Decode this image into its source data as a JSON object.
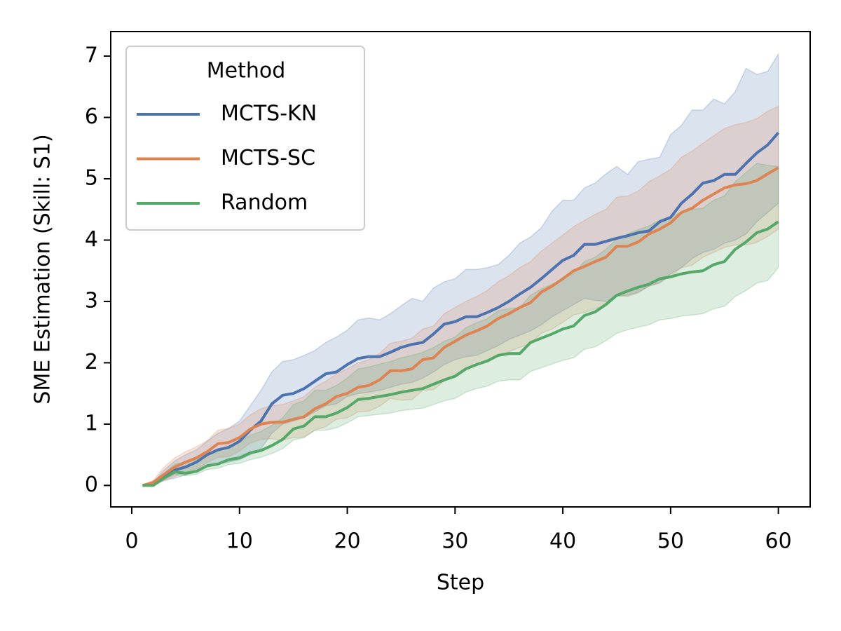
{
  "chart_data": {
    "type": "line",
    "xlabel": "Step",
    "ylabel": "SME Estimation (Skill: S1)",
    "legend_title": "Method",
    "legend": "upper left",
    "xlim": [
      -1.95,
      62.95
    ],
    "xticks": [
      0,
      10,
      20,
      30,
      40,
      50,
      60
    ],
    "ylim": [
      -0.35,
      7.4
    ],
    "yticks": [
      0,
      1,
      2,
      3,
      4,
      5,
      6,
      7
    ],
    "x": [
      1,
      2,
      3,
      4,
      5,
      6,
      7,
      8,
      9,
      10,
      11,
      12,
      13,
      14,
      15,
      16,
      17,
      18,
      19,
      20,
      21,
      22,
      23,
      24,
      25,
      26,
      27,
      28,
      29,
      30,
      31,
      32,
      33,
      34,
      35,
      36,
      37,
      38,
      39,
      40,
      41,
      42,
      43,
      44,
      45,
      46,
      47,
      48,
      49,
      50,
      51,
      52,
      53,
      54,
      55,
      56,
      57,
      58,
      59,
      60
    ],
    "series": [
      {
        "name": "MCTS-KN",
        "color": "#4c72b0",
        "values": [
          0,
          0.03,
          0.15,
          0.25,
          0.3,
          0.38,
          0.5,
          0.58,
          0.62,
          0.72,
          0.9,
          1.05,
          1.33,
          1.47,
          1.5,
          1.58,
          1.7,
          1.82,
          1.85,
          1.97,
          2.07,
          2.1,
          2.1,
          2.17,
          2.25,
          2.3,
          2.33,
          2.47,
          2.63,
          2.67,
          2.75,
          2.75,
          2.82,
          2.9,
          3.0,
          3.12,
          3.23,
          3.37,
          3.52,
          3.67,
          3.75,
          3.93,
          3.93,
          3.98,
          4.03,
          4.07,
          4.12,
          4.15,
          4.3,
          4.37,
          4.6,
          4.75,
          4.93,
          4.97,
          5.07,
          5.07,
          5.25,
          5.42,
          5.55,
          5.75
        ],
        "upper": [
          0,
          0.05,
          0.25,
          0.4,
          0.5,
          0.58,
          0.72,
          0.85,
          0.93,
          1.05,
          1.3,
          1.55,
          1.85,
          2.02,
          2.05,
          2.12,
          2.2,
          2.33,
          2.42,
          2.53,
          2.7,
          2.73,
          2.7,
          2.8,
          2.93,
          3.05,
          3.0,
          3.22,
          3.32,
          3.37,
          3.52,
          3.52,
          3.55,
          3.6,
          3.75,
          3.95,
          4.05,
          4.2,
          4.47,
          4.65,
          4.65,
          4.85,
          4.93,
          5.08,
          5.2,
          5.07,
          5.28,
          5.32,
          5.35,
          5.72,
          5.87,
          6.12,
          6.12,
          6.3,
          6.22,
          6.42,
          6.8,
          6.7,
          6.75,
          7.03
        ],
        "lower": [
          0,
          0,
          0.08,
          0.12,
          0.17,
          0.22,
          0.3,
          0.35,
          0.38,
          0.42,
          0.5,
          0.6,
          0.85,
          1.0,
          1.05,
          1.1,
          1.2,
          1.3,
          1.33,
          1.45,
          1.5,
          1.52,
          1.55,
          1.6,
          1.65,
          1.68,
          1.75,
          1.85,
          1.97,
          2.05,
          2.1,
          2.12,
          2.2,
          2.28,
          2.38,
          2.45,
          2.52,
          2.62,
          2.75,
          2.85,
          2.95,
          3.05,
          3.02,
          3.0,
          3.08,
          3.1,
          3.15,
          3.25,
          3.3,
          3.45,
          3.55,
          3.7,
          3.8,
          3.85,
          3.95,
          4.0,
          4.1,
          4.3,
          4.45,
          4.6
        ]
      },
      {
        "name": "MCTS-SC",
        "color": "#dd8452",
        "values": [
          0,
          0.05,
          0.18,
          0.3,
          0.38,
          0.45,
          0.55,
          0.68,
          0.7,
          0.78,
          0.92,
          1.0,
          1.03,
          1.03,
          1.08,
          1.12,
          1.25,
          1.33,
          1.45,
          1.5,
          1.6,
          1.63,
          1.72,
          1.87,
          1.87,
          1.9,
          2.05,
          2.08,
          2.25,
          2.35,
          2.45,
          2.52,
          2.6,
          2.72,
          2.8,
          2.9,
          2.98,
          3.15,
          3.25,
          3.37,
          3.5,
          3.57,
          3.65,
          3.72,
          3.9,
          3.9,
          3.97,
          4.1,
          4.18,
          4.28,
          4.45,
          4.52,
          4.65,
          4.75,
          4.85,
          4.9,
          4.92,
          4.97,
          5.08,
          5.18
        ],
        "upper": [
          0,
          0.08,
          0.3,
          0.45,
          0.55,
          0.63,
          0.73,
          0.9,
          0.93,
          1.0,
          1.15,
          1.25,
          1.3,
          1.32,
          1.38,
          1.45,
          1.6,
          1.7,
          1.82,
          1.9,
          2.0,
          2.05,
          2.15,
          2.32,
          2.35,
          2.4,
          2.55,
          2.6,
          2.8,
          2.9,
          3.0,
          3.08,
          3.18,
          3.32,
          3.42,
          3.55,
          3.65,
          3.82,
          3.95,
          4.08,
          4.22,
          4.32,
          4.42,
          4.5,
          4.7,
          4.72,
          4.8,
          4.95,
          5.05,
          5.15,
          5.35,
          5.45,
          5.58,
          5.7,
          5.82,
          5.88,
          5.92,
          5.98,
          6.1,
          6.18
        ],
        "lower": [
          0,
          0.02,
          0.08,
          0.15,
          0.2,
          0.27,
          0.37,
          0.46,
          0.47,
          0.56,
          0.69,
          0.75,
          0.76,
          0.74,
          0.78,
          0.79,
          0.9,
          0.96,
          1.08,
          1.1,
          1.2,
          1.21,
          1.29,
          1.42,
          1.39,
          1.4,
          1.55,
          1.56,
          1.7,
          1.8,
          1.9,
          1.96,
          2.02,
          2.12,
          2.18,
          2.25,
          2.31,
          2.48,
          2.55,
          2.66,
          2.78,
          2.82,
          2.88,
          2.94,
          3.1,
          3.08,
          3.14,
          3.25,
          3.31,
          3.41,
          3.55,
          3.59,
          3.72,
          3.8,
          3.88,
          3.92,
          3.92,
          3.96,
          4.06,
          4.18
        ]
      },
      {
        "name": "Random",
        "color": "#55a868",
        "values": [
          0,
          0,
          0.12,
          0.22,
          0.2,
          0.23,
          0.32,
          0.35,
          0.42,
          0.45,
          0.53,
          0.57,
          0.65,
          0.75,
          0.92,
          0.97,
          1.12,
          1.12,
          1.18,
          1.27,
          1.4,
          1.42,
          1.45,
          1.48,
          1.52,
          1.55,
          1.58,
          1.65,
          1.72,
          1.78,
          1.9,
          1.97,
          2.03,
          2.12,
          2.15,
          2.15,
          2.33,
          2.4,
          2.47,
          2.55,
          2.6,
          2.77,
          2.83,
          2.95,
          3.1,
          3.17,
          3.23,
          3.28,
          3.37,
          3.4,
          3.45,
          3.48,
          3.5,
          3.6,
          3.65,
          3.85,
          3.97,
          4.12,
          4.18,
          4.3
        ],
        "upper": [
          0,
          0,
          0.2,
          0.35,
          0.38,
          0.42,
          0.5,
          0.55,
          0.65,
          0.7,
          0.82,
          0.88,
          0.98,
          1.1,
          1.32,
          1.38,
          1.55,
          1.55,
          1.63,
          1.75,
          1.9,
          1.93,
          1.98,
          2.02,
          2.08,
          2.12,
          2.17,
          2.25,
          2.35,
          2.42,
          2.57,
          2.65,
          2.72,
          2.85,
          2.88,
          2.9,
          3.1,
          3.2,
          3.28,
          3.38,
          3.45,
          3.65,
          3.72,
          3.85,
          4.02,
          4.1,
          4.17,
          4.23,
          4.33,
          4.38,
          4.45,
          4.5,
          4.52,
          4.65,
          4.72,
          4.95,
          5.1,
          5.25,
          5.22,
          5.2
        ],
        "lower": [
          0,
          0,
          0.1,
          0.18,
          0.16,
          0.18,
          0.26,
          0.28,
          0.34,
          0.36,
          0.42,
          0.46,
          0.52,
          0.6,
          0.74,
          0.78,
          0.9,
          0.9,
          0.94,
          1.02,
          1.12,
          1.14,
          1.16,
          1.18,
          1.22,
          1.24,
          1.26,
          1.32,
          1.38,
          1.42,
          1.52,
          1.58,
          1.62,
          1.7,
          1.72,
          1.72,
          1.86,
          1.92,
          1.98,
          2.04,
          2.08,
          2.22,
          2.26,
          2.36,
          2.48,
          2.54,
          2.58,
          2.62,
          2.7,
          2.72,
          2.76,
          2.78,
          2.8,
          2.88,
          2.92,
          3.08,
          3.18,
          3.3,
          3.34,
          3.55
        ]
      }
    ]
  }
}
